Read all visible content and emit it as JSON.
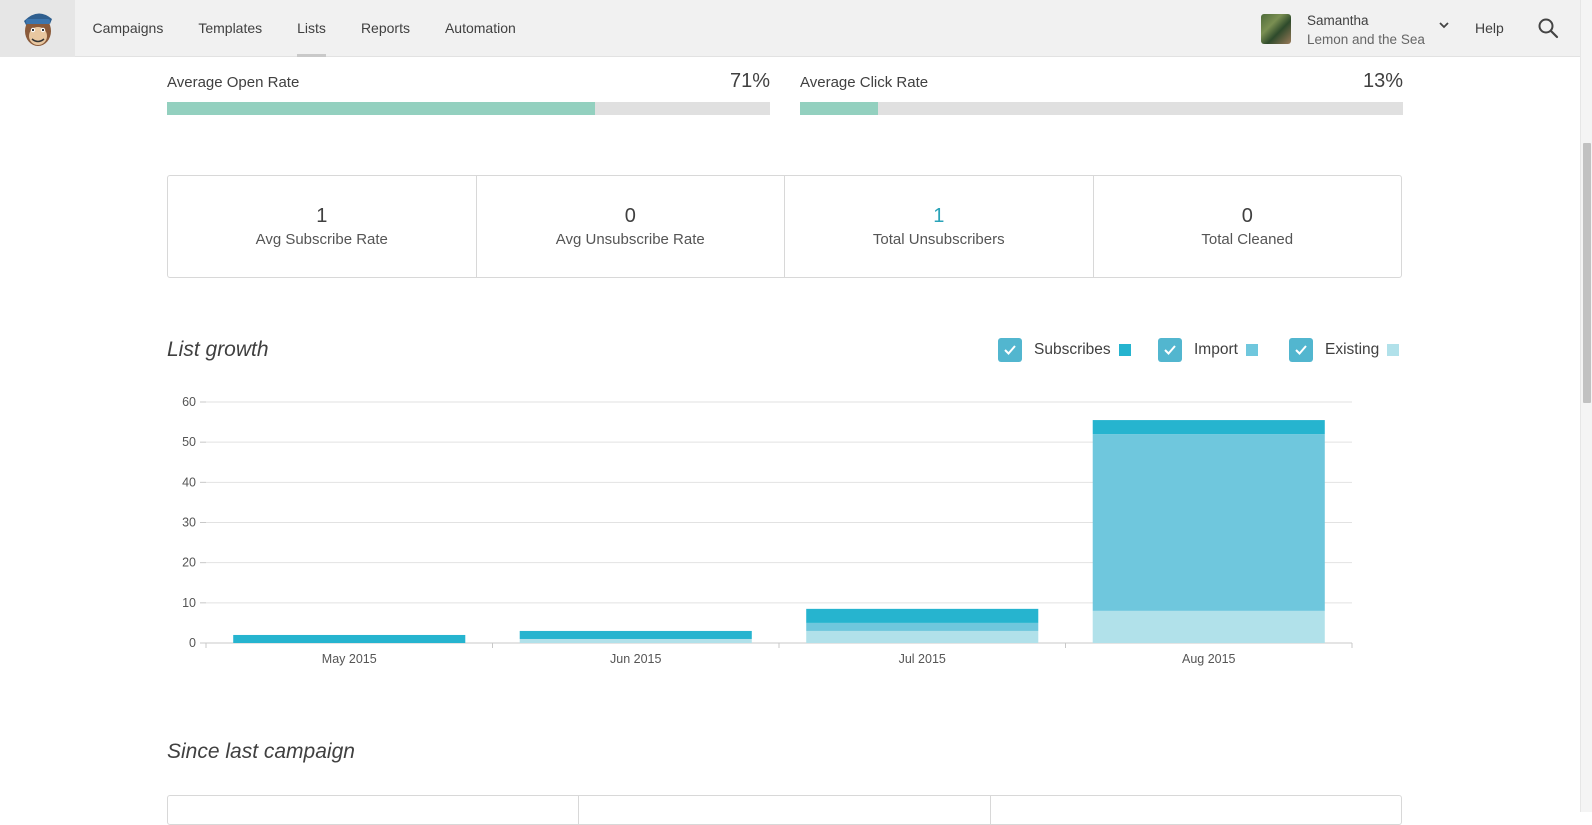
{
  "nav": {
    "items": [
      {
        "label": "Campaigns",
        "active": false
      },
      {
        "label": "Templates",
        "active": false
      },
      {
        "label": "Lists",
        "active": true
      },
      {
        "label": "Reports",
        "active": false
      },
      {
        "label": "Automation",
        "active": false
      }
    ],
    "help_label": "Help"
  },
  "user": {
    "name": "Samantha",
    "org": "Lemon and the Sea"
  },
  "rates": {
    "open": {
      "label": "Average Open Rate",
      "value": "71%",
      "fraction": 0.71
    },
    "click": {
      "label": "Average Click Rate",
      "value": "13%",
      "fraction": 0.13
    }
  },
  "stats": [
    {
      "value": "1",
      "label": "Avg Subscribe Rate"
    },
    {
      "value": "0",
      "label": "Avg Unsubscribe Rate"
    },
    {
      "value": "1",
      "label": "Total Unsubscribers"
    },
    {
      "value": "0",
      "label": "Total Cleaned"
    }
  ],
  "list_growth": {
    "title": "List growth",
    "legend": [
      {
        "label": "Subscribes",
        "checked": true,
        "color": "#26b4cf"
      },
      {
        "label": "Import",
        "checked": true,
        "color": "#6fc7dd"
      },
      {
        "label": "Existing",
        "checked": true,
        "color": "#b1e1ea"
      }
    ]
  },
  "since_last": {
    "title": "Since last campaign"
  },
  "colors": {
    "accent": "#2aa3b8",
    "rate_fill": "#93d0bf",
    "checkbox": "#52b6cf"
  },
  "chart_data": {
    "type": "bar",
    "stacked": true,
    "categories": [
      "May 2015",
      "Jun 2015",
      "Jul 2015",
      "Aug 2015"
    ],
    "series": [
      {
        "name": "Existing",
        "color": "#b1e1ea",
        "values": [
          0,
          1,
          3,
          8
        ]
      },
      {
        "name": "Import",
        "color": "#6fc7dd",
        "values": [
          0,
          0,
          2,
          44
        ]
      },
      {
        "name": "Subscribes",
        "color": "#26b4cf",
        "values": [
          2,
          2,
          3.5,
          3.5
        ]
      }
    ],
    "ylim": [
      0,
      60
    ],
    "yticks": [
      0,
      10,
      20,
      30,
      40,
      50,
      60
    ],
    "grid": true,
    "legend_position": "top-right"
  }
}
